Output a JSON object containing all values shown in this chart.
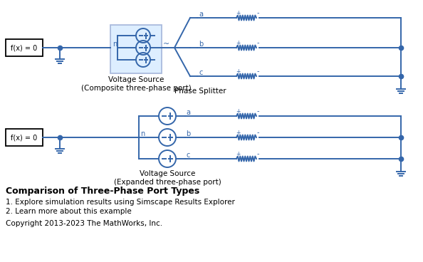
{
  "bg_color": "#ffffff",
  "cc": "#3466aa",
  "cc_light": "#aabbdd",
  "box_fill": "#ddeeff",
  "title": "Comparison of Three-Phase Port Types",
  "item1": "1. Explore simulation results using Simscape Results Explorer",
  "item2": "2. Learn more about this example",
  "copyright": "Copyright 2013-2023 The MathWorks, Inc.",
  "label_top_vs": "Voltage Source\n(Composite three-phase port)",
  "label_top_ps": "Phase Splitter",
  "label_bot_vs": "Voltage Source\n(Expanded three-phase port)"
}
